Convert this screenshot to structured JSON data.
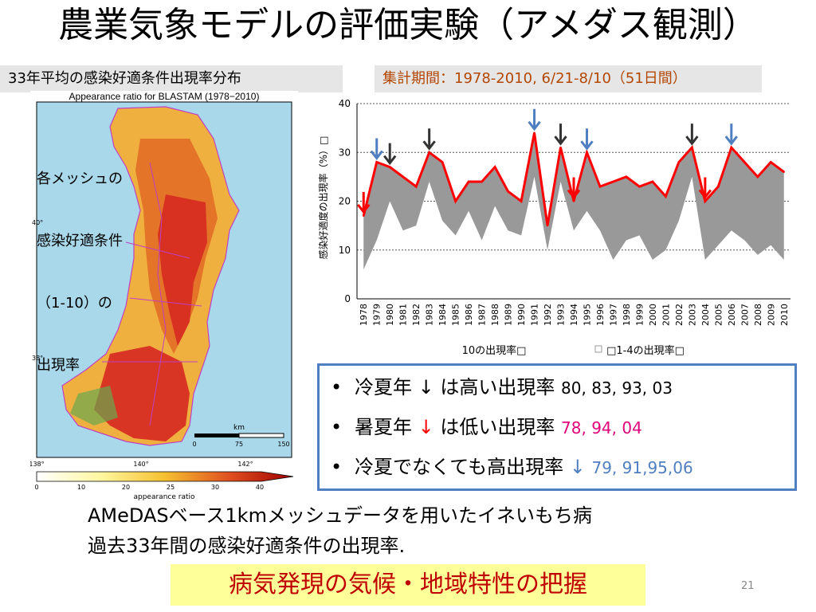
{
  "title": "農業気象モデルの評価実験（アメダス観測）",
  "map_subtitle": "33年平均の感染好適条件出現率分布",
  "period_label": "集計期間：1978-2010,  6/21-8/10（51日間）",
  "map": {
    "title": "Appearance ratio for BLASTAM (1978−2010)",
    "caption_lines": [
      "各メッシュの",
      "感染好適条件",
      "（1-10）の",
      "出現率"
    ],
    "lat_labels": [
      "40°",
      "38°"
    ],
    "lon_labels": [
      "138°",
      "140°",
      "142°"
    ],
    "scale_unit": "km",
    "scale_ticks": [
      "0",
      "75",
      "150"
    ],
    "colorbar_ticks": [
      "0",
      "10",
      "20",
      "25",
      "30",
      "40"
    ],
    "colorbar_label": "appearance ratio",
    "colors": {
      "sea": "#a8d8ea",
      "low": "#f5f0a0",
      "mid": "#f0a030",
      "high": "#d42020",
      "boundary": "#c040c0"
    }
  },
  "chart_data": {
    "type": "line",
    "ylabel": "感染好適度の出現率（%）□",
    "ylim": [
      0,
      40
    ],
    "yticks": [
      0,
      10,
      20,
      30,
      40
    ],
    "x": [
      1978,
      1979,
      1980,
      1981,
      1982,
      1983,
      1984,
      1985,
      1986,
      1987,
      1988,
      1989,
      1990,
      1991,
      1992,
      1993,
      1994,
      1995,
      1996,
      1997,
      1998,
      1999,
      2000,
      2001,
      2002,
      2003,
      2004,
      2005,
      2006,
      2007,
      2008,
      2009,
      2010
    ],
    "x_labels": [
      "1978",
      "1979",
      "1980",
      "1981",
      "1982",
      "1983",
      "1984",
      "1985",
      "1986",
      "1987",
      "1988",
      "1989",
      "1990",
      "1991",
      "1992",
      "1993",
      "1994",
      "1995",
      "1996",
      "1997",
      "1998",
      "1999",
      "2000",
      "2001",
      "2002",
      "2003",
      "2004",
      "2005",
      "2006",
      "2007",
      "2008",
      "2009",
      "2010"
    ],
    "series": [
      {
        "name": "10の出現率□",
        "color": "#ff0000",
        "values": [
          17,
          28,
          27,
          25,
          23,
          30,
          28,
          20,
          24,
          24,
          27,
          22,
          20,
          34,
          15,
          31,
          20,
          30,
          23,
          24,
          25,
          23,
          24,
          21,
          28,
          31,
          20,
          23,
          31,
          28,
          25,
          28,
          26
        ]
      },
      {
        "name": "□1-4の出現率□",
        "color": "#999999",
        "values": [
          6,
          12,
          20,
          14,
          15,
          24,
          16,
          13,
          18,
          12,
          19,
          14,
          13,
          25,
          10,
          24,
          14,
          18,
          14,
          8,
          12,
          13,
          8,
          10,
          16,
          25,
          8,
          11,
          14,
          12,
          9,
          11,
          8
        ]
      }
    ],
    "arrows": [
      {
        "year": 1978,
        "kind": "red"
      },
      {
        "year": 1979,
        "kind": "blue"
      },
      {
        "year": 1980,
        "kind": "black"
      },
      {
        "year": 1983,
        "kind": "black"
      },
      {
        "year": 1991,
        "kind": "blue"
      },
      {
        "year": 1993,
        "kind": "black"
      },
      {
        "year": 1994,
        "kind": "red"
      },
      {
        "year": 1995,
        "kind": "blue"
      },
      {
        "year": 2003,
        "kind": "black"
      },
      {
        "year": 2004,
        "kind": "red"
      },
      {
        "year": 2006,
        "kind": "blue"
      }
    ],
    "grid": true,
    "legend_position": "bottom"
  },
  "findings": [
    {
      "bullet": "•",
      "text": "冷夏年",
      "arrow": "↓",
      "rest": "は高い出現率",
      "nums": "80, 83, 93, 03",
      "arrow_color": "#000000",
      "nums_color": "#000000"
    },
    {
      "bullet": "•",
      "text": "暑夏年",
      "arrow": "↓",
      "rest": "は低い出現率",
      "nums": "78, 94, 04",
      "arrow_color": "#ff0000",
      "nums_color": "#e0007a"
    },
    {
      "bullet": "•",
      "text": "冷夏でなくても高出現率",
      "arrow": "↓",
      "rest": "",
      "nums": "79, 91,95,06",
      "arrow_color": "#4f7fc0",
      "nums_color": "#4f7fc0"
    }
  ],
  "description_lines": [
    "AMeDASベース1kmメッシュデータを用いたイネいもち病",
    "過去33年間の感染好適条件の出現率."
  ],
  "conclusion": "病気発現の気候・地域特性の把握",
  "page_number": "21"
}
